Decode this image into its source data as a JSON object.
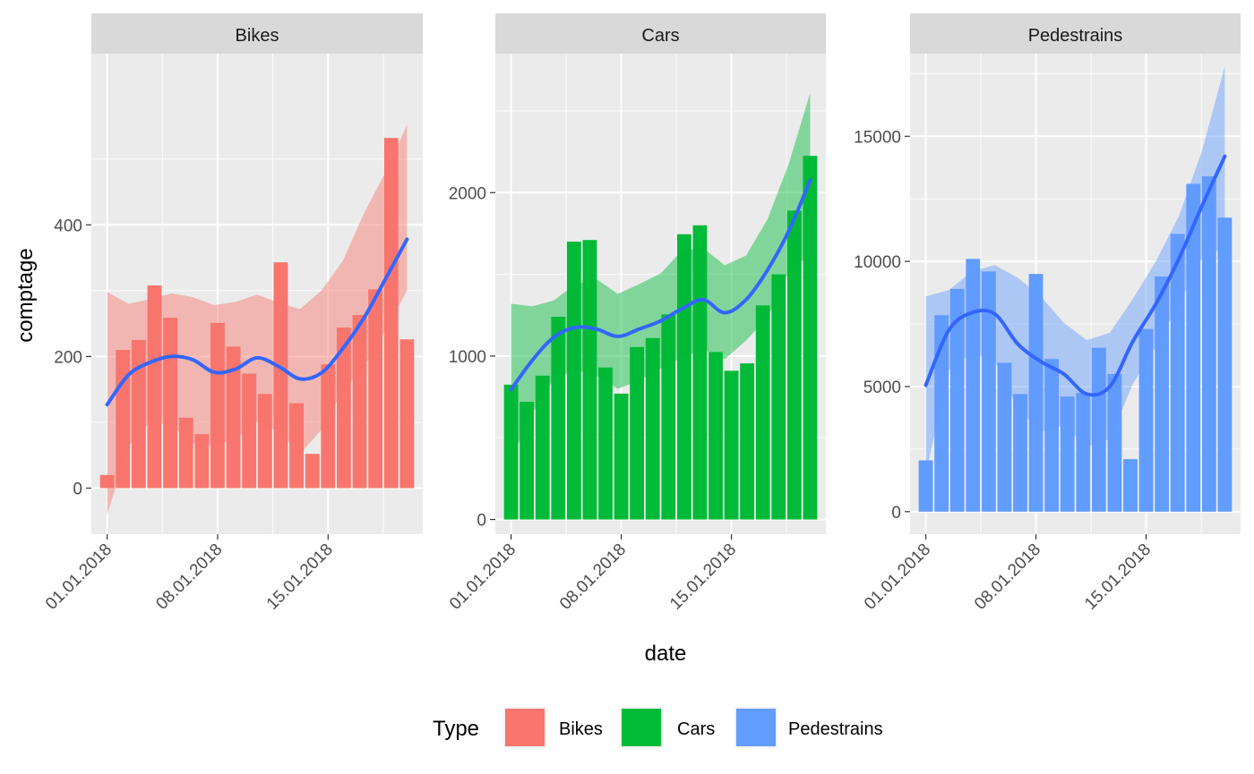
{
  "chart_data": {
    "type": "bar",
    "xlabel": "date",
    "ylabel": "comptage",
    "x_dates": [
      "01.01.2018",
      "02.01.2018",
      "03.01.2018",
      "04.01.2018",
      "05.01.2018",
      "06.01.2018",
      "07.01.2018",
      "08.01.2018",
      "09.01.2018",
      "10.01.2018",
      "11.01.2018",
      "12.01.2018",
      "13.01.2018",
      "14.01.2018",
      "15.01.2018",
      "16.01.2018",
      "17.01.2018",
      "18.01.2018",
      "19.01.2018",
      "20.01.2018"
    ],
    "x_ticks": [
      "01.01.2018",
      "08.01.2018",
      "15.01.2018"
    ],
    "xlim": [
      "31.12.2017",
      "21.01.2018"
    ],
    "legend": {
      "title": "Type",
      "position": "bottom",
      "entries": [
        {
          "label": "Bikes",
          "color": "#F8766D"
        },
        {
          "label": "Cars",
          "color": "#00BA38"
        },
        {
          "label": "Pedestrains",
          "color": "#619CFF"
        }
      ]
    },
    "smooth_color": "#3366FF",
    "grid": true,
    "facets": [
      {
        "name": "Bikes",
        "color": "#F8766D",
        "ylim": [
          -70,
          660
        ],
        "y_ticks": [
          0,
          200,
          400
        ],
        "values": [
          20,
          210,
          225,
          308,
          259,
          107,
          82,
          251,
          215,
          174,
          143,
          343,
          129,
          52,
          188,
          244,
          263,
          302,
          532,
          226
        ],
        "smooth": [
          127,
          172,
          191,
          200,
          195,
          176,
          181,
          198,
          185,
          166,
          175,
          212,
          259,
          318,
          378
        ],
        "smooth_upper": [
          298,
          280,
          287,
          296,
          290,
          278,
          283,
          294,
          282,
          272,
          300,
          345,
          418,
          480,
          552
        ],
        "smooth_lower": [
          -40,
          64,
          100,
          96,
          68,
          64,
          75,
          100,
          86,
          52,
          88,
          148,
          185,
          240,
          300
        ]
      },
      {
        "name": "Cars",
        "color": "#00BA38",
        "ylim": [
          -90,
          2850
        ],
        "y_ticks": [
          0,
          1000,
          2000
        ],
        "values": [
          825,
          720,
          880,
          1240,
          1700,
          1710,
          930,
          770,
          1055,
          1110,
          1255,
          1745,
          1800,
          1025,
          910,
          955,
          1310,
          1500,
          1890,
          2225
        ],
        "smooth": [
          795,
          975,
          1115,
          1175,
          1165,
          1120,
          1165,
          1215,
          1290,
          1345,
          1265,
          1345,
          1525,
          1765,
          2075
        ],
        "smooth_upper": [
          1320,
          1305,
          1340,
          1440,
          1470,
          1380,
          1440,
          1505,
          1645,
          1660,
          1555,
          1615,
          1835,
          2175,
          2610
        ],
        "smooth_lower": [
          370,
          650,
          860,
          915,
          880,
          800,
          850,
          925,
          990,
          1040,
          980,
          1095,
          1235,
          1515,
          1625
        ]
      },
      {
        "name": "Pedestrains",
        "color": "#619CFF",
        "ylim": [
          -900,
          18300
        ],
        "y_ticks": [
          0,
          5000,
          10000,
          15000
        ],
        "values": [
          2050,
          7850,
          8900,
          10100,
          9600,
          5950,
          4700,
          9500,
          6100,
          4600,
          4750,
          6550,
          5500,
          2100,
          7300,
          9400,
          11100,
          13100,
          13400,
          11750
        ],
        "smooth": [
          5050,
          7250,
          7950,
          7900,
          6700,
          6000,
          5500,
          4700,
          5000,
          6800,
          8300,
          10100,
          12200,
          14200
        ],
        "smooth_upper": [
          8600,
          8850,
          9600,
          9850,
          9350,
          8600,
          7550,
          6850,
          7150,
          8500,
          10000,
          11800,
          14400,
          17800
        ],
        "smooth_lower": [
          1500,
          5650,
          6350,
          6000,
          4100,
          3200,
          3450,
          2600,
          2900,
          5100,
          6600,
          8300,
          10100,
          10600
        ]
      }
    ]
  }
}
